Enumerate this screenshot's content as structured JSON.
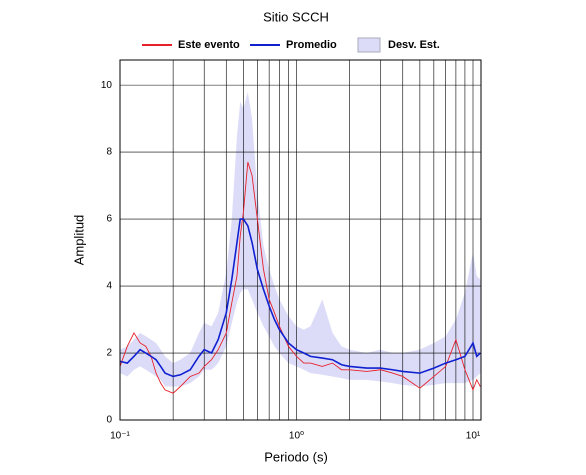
{
  "chart_data": {
    "type": "line",
    "title": "Sitio SCCH",
    "xlabel": "Periodo (s)",
    "ylabel": "Amplitud",
    "xscale": "log",
    "grid": true,
    "legend": "top",
    "xlim": [
      0.1,
      11.1
    ],
    "ylim": [
      0,
      10.75
    ],
    "xticks": [
      {
        "value": 0.1,
        "label": "10⁻¹"
      },
      {
        "value": 1,
        "label": "10⁰"
      },
      {
        "value": 10,
        "label": "10¹"
      }
    ],
    "yticks": [
      0,
      2,
      4,
      6,
      8,
      10
    ],
    "x": [
      0.1,
      0.11,
      0.12,
      0.13,
      0.14,
      0.15,
      0.16,
      0.17,
      0.18,
      0.2,
      0.22,
      0.25,
      0.28,
      0.3,
      0.33,
      0.36,
      0.4,
      0.43,
      0.46,
      0.48,
      0.5,
      0.53,
      0.56,
      0.6,
      0.65,
      0.7,
      0.75,
      0.8,
      0.9,
      1,
      1.1,
      1.2,
      1.4,
      1.6,
      1.8,
      2,
      2.5,
      3,
      3.5,
      4,
      5,
      6,
      7,
      8,
      9,
      10,
      10.5,
      11
    ],
    "series": [
      {
        "name": "Este evento",
        "color": "#e8202a",
        "values": [
          1.6,
          2.2,
          2.6,
          2.3,
          2.2,
          1.9,
          1.4,
          1.1,
          0.9,
          0.8,
          1.0,
          1.3,
          1.4,
          1.6,
          1.8,
          2.1,
          2.6,
          3.5,
          4.3,
          5.5,
          6.2,
          7.7,
          7.3,
          6.0,
          4.5,
          3.6,
          3.2,
          2.8,
          2.2,
          1.9,
          1.7,
          1.7,
          1.6,
          1.7,
          1.5,
          1.5,
          1.45,
          1.5,
          1.4,
          1.3,
          0.95,
          1.3,
          1.6,
          2.4,
          1.5,
          0.9,
          1.2,
          1.0
        ]
      },
      {
        "name": "Promedio",
        "color": "#1020d0",
        "values": [
          1.75,
          1.7,
          1.9,
          2.1,
          2.0,
          1.9,
          1.8,
          1.6,
          1.4,
          1.3,
          1.35,
          1.5,
          1.9,
          2.1,
          2.0,
          2.4,
          3.2,
          4.2,
          5.3,
          6.0,
          6.0,
          5.8,
          5.3,
          4.5,
          3.9,
          3.4,
          3.0,
          2.7,
          2.3,
          2.1,
          2.0,
          1.9,
          1.85,
          1.8,
          1.65,
          1.6,
          1.55,
          1.55,
          1.5,
          1.45,
          1.4,
          1.55,
          1.7,
          1.8,
          1.9,
          2.3,
          1.9,
          2.0
        ]
      },
      {
        "name": "Desv. Est.",
        "color": "#dcdcf8",
        "lower": [
          1.4,
          1.3,
          1.5,
          1.6,
          1.5,
          1.4,
          1.3,
          1.2,
          1.0,
          1.0,
          1.0,
          1.1,
          1.3,
          1.5,
          1.5,
          1.7,
          2.2,
          2.9,
          3.5,
          3.8,
          3.9,
          3.9,
          3.6,
          3.2,
          2.8,
          2.5,
          2.2,
          2.0,
          1.7,
          1.6,
          1.5,
          1.4,
          1.35,
          1.3,
          1.25,
          1.2,
          1.2,
          1.15,
          1.1,
          1.05,
          1.0,
          1.05,
          1.1,
          1.1,
          1.1,
          1.2,
          1.3,
          1.4
        ],
        "upper": [
          2.1,
          2.2,
          2.4,
          2.6,
          2.5,
          2.4,
          2.3,
          2.1,
          1.9,
          1.7,
          1.8,
          2.0,
          2.6,
          2.9,
          2.8,
          3.2,
          4.4,
          6.0,
          8.5,
          9.5,
          9.3,
          9.8,
          9.0,
          6.8,
          5.2,
          4.5,
          4.0,
          3.6,
          3.1,
          2.8,
          2.7,
          2.8,
          3.6,
          2.6,
          2.2,
          2.1,
          2.0,
          2.1,
          2.0,
          2.0,
          2.1,
          2.3,
          2.5,
          3.0,
          3.8,
          5.0,
          4.3,
          4.2
        ]
      }
    ]
  }
}
